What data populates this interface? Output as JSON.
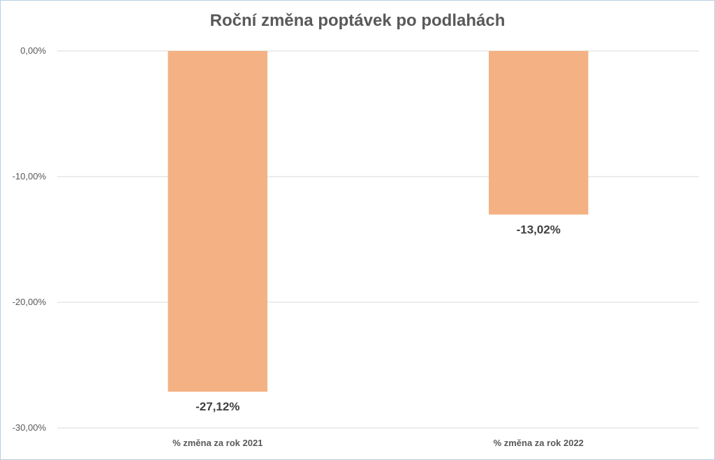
{
  "chart_data": {
    "type": "bar",
    "title": "Roční změna poptávek po podlahách",
    "categories": [
      "% změna za rok 2021",
      "% změna za rok 2022"
    ],
    "values": [
      -27.12,
      -13.02
    ],
    "data_labels": [
      "-27,12%",
      "-13,02%"
    ],
    "yticks": [
      {
        "value": 0,
        "label": "0,00%"
      },
      {
        "value": -10,
        "label": "-10,00%"
      },
      {
        "value": -20,
        "label": "-20,00%"
      },
      {
        "value": -30,
        "label": "-30,00%"
      }
    ],
    "ylim": [
      -30,
      0
    ],
    "xlabel": "",
    "ylabel": "",
    "grid": true,
    "legend": "none",
    "colors": {
      "bar": "#F4B183",
      "grid": "#d9d9d9",
      "text": "#595959"
    }
  }
}
